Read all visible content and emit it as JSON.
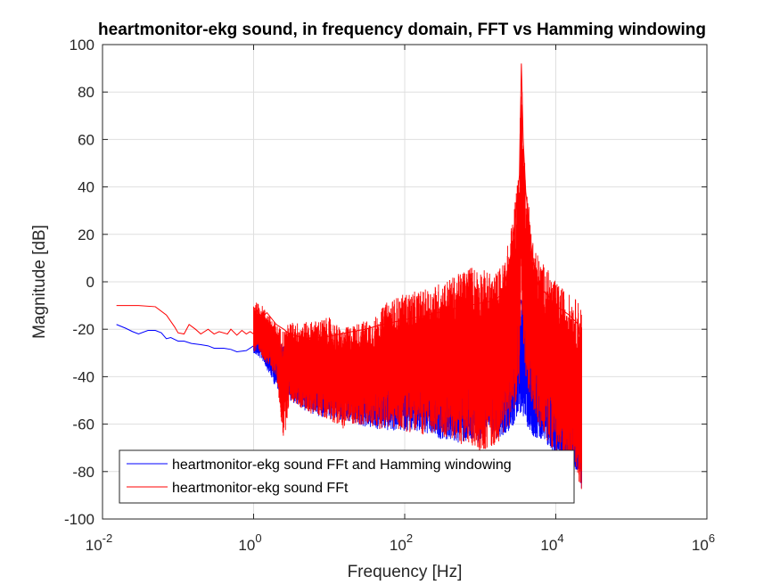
{
  "chart_data": {
    "type": "line",
    "title": "heartmonitor-ekg sound, in frequency domain, FFT vs Hamming windowing",
    "xlabel": "Frequency [Hz]",
    "ylabel": "Magnitude [dB]",
    "xscale": "log",
    "xlim": [
      0.01,
      1000000
    ],
    "ylim": [
      -100,
      100
    ],
    "grid": true,
    "legend_position": "bottom-left",
    "x_ticks": [
      {
        "value": 0.01,
        "base": "10",
        "exp": "-2"
      },
      {
        "value": 1,
        "base": "10",
        "exp": "0"
      },
      {
        "value": 100,
        "base": "10",
        "exp": "2"
      },
      {
        "value": 10000,
        "base": "10",
        "exp": "4"
      },
      {
        "value": 1000000,
        "base": "10",
        "exp": "6"
      }
    ],
    "y_ticks": [
      {
        "value": 100,
        "label": "100"
      },
      {
        "value": 80,
        "label": "80"
      },
      {
        "value": 60,
        "label": "60"
      },
      {
        "value": 40,
        "label": "40"
      },
      {
        "value": 20,
        "label": "20"
      },
      {
        "value": 0,
        "label": "0"
      },
      {
        "value": -20,
        "label": "-20"
      },
      {
        "value": -40,
        "label": "-40"
      },
      {
        "value": -60,
        "label": "-60"
      },
      {
        "value": -80,
        "label": "-80"
      },
      {
        "value": -100,
        "label": "-100"
      }
    ],
    "series": [
      {
        "name": "heartmonitor-ekg sound FFt and Hamming windowing",
        "color": "#0000ff",
        "points": [
          [
            0.0153,
            -18
          ],
          [
            0.02,
            -19.5
          ],
          [
            0.025,
            -21
          ],
          [
            0.03,
            -22
          ],
          [
            0.04,
            -20.5
          ],
          [
            0.05,
            -20.5
          ],
          [
            0.06,
            -21.5
          ],
          [
            0.07,
            -24
          ],
          [
            0.08,
            -23.5
          ],
          [
            0.1,
            -25
          ],
          [
            0.12,
            -25
          ],
          [
            0.15,
            -26
          ],
          [
            0.2,
            -26.5
          ],
          [
            0.25,
            -27
          ],
          [
            0.3,
            -28
          ],
          [
            0.4,
            -28
          ],
          [
            0.5,
            -28.5
          ],
          [
            0.6,
            -29.5
          ],
          [
            0.8,
            -29
          ],
          [
            1.0,
            -27
          ],
          [
            1.2,
            -20
          ],
          [
            1.5,
            -22
          ],
          [
            2.0,
            -28
          ],
          [
            2.5,
            -40
          ],
          [
            3.0,
            -33
          ],
          [
            4.0,
            -38
          ],
          [
            5.0,
            -37
          ],
          [
            7.0,
            -42
          ],
          [
            10,
            -43
          ],
          [
            15,
            -46
          ],
          [
            20,
            -47
          ],
          [
            30,
            -48
          ],
          [
            50,
            -50
          ],
          [
            70,
            -50
          ],
          [
            100,
            -50
          ],
          [
            150,
            -51
          ],
          [
            200,
            -52
          ],
          [
            300,
            -53
          ],
          [
            500,
            -52
          ],
          [
            700,
            -53
          ],
          [
            1000,
            -54
          ],
          [
            1500,
            -53
          ],
          [
            2000,
            -50
          ],
          [
            2500,
            -42
          ],
          [
            3000,
            -20
          ],
          [
            3500,
            -8
          ],
          [
            4000,
            -12
          ],
          [
            5000,
            -40
          ],
          [
            7000,
            -48
          ],
          [
            10000,
            -55
          ],
          [
            15000,
            -60
          ],
          [
            20000,
            -70
          ],
          [
            22000,
            -80
          ]
        ],
        "envelope": [
          [
            1.0,
            -26,
            -30
          ],
          [
            1.3,
            -20,
            -33
          ],
          [
            2.0,
            -25,
            -45
          ],
          [
            3.0,
            -27,
            -50
          ],
          [
            5.0,
            -28,
            -55
          ],
          [
            10,
            -30,
            -58
          ],
          [
            20,
            -29,
            -60
          ],
          [
            50,
            -28,
            -63
          ],
          [
            100,
            -27,
            -63
          ],
          [
            200,
            -26,
            -65
          ],
          [
            500,
            -24,
            -68
          ],
          [
            1000,
            -22,
            -68
          ],
          [
            2000,
            -18,
            -65
          ],
          [
            3000,
            -10,
            -60
          ],
          [
            3500,
            -6,
            -55
          ],
          [
            4000,
            -10,
            -60
          ],
          [
            5000,
            -25,
            -65
          ],
          [
            8000,
            -40,
            -70
          ],
          [
            12000,
            -48,
            -75
          ],
          [
            20000,
            -55,
            -80
          ],
          [
            22000,
            -70,
            -88
          ]
        ]
      },
      {
        "name": "heartmonitor-ekg sound FFt",
        "color": "#ff0000",
        "points": [
          [
            0.0153,
            -10
          ],
          [
            0.03,
            -10
          ],
          [
            0.05,
            -10.5
          ],
          [
            0.07,
            -14
          ],
          [
            0.09,
            -19
          ],
          [
            0.1,
            -21.5
          ],
          [
            0.12,
            -22
          ],
          [
            0.14,
            -18
          ],
          [
            0.17,
            -20
          ],
          [
            0.2,
            -22
          ],
          [
            0.25,
            -20
          ],
          [
            0.3,
            -22
          ],
          [
            0.35,
            -21
          ],
          [
            0.45,
            -22
          ],
          [
            0.5,
            -20
          ],
          [
            0.6,
            -22.5
          ],
          [
            0.7,
            -20.5
          ],
          [
            0.8,
            -22
          ],
          [
            0.9,
            -21
          ],
          [
            1.0,
            -22
          ],
          [
            1.1,
            -12
          ],
          [
            1.3,
            -15
          ],
          [
            1.5,
            -13
          ],
          [
            2.0,
            -18
          ],
          [
            2.5,
            -20
          ],
          [
            3,
            -22
          ],
          [
            5,
            -24
          ],
          [
            10,
            -23
          ],
          [
            20,
            -21
          ],
          [
            30,
            -20
          ],
          [
            50,
            -18
          ],
          [
            100,
            -16
          ],
          [
            200,
            -14
          ],
          [
            500,
            -11
          ],
          [
            1000,
            -9
          ],
          [
            1500,
            -8
          ],
          [
            2000,
            -5
          ],
          [
            2500,
            10
          ],
          [
            3000,
            30
          ],
          [
            3300,
            45
          ],
          [
            3500,
            92
          ],
          [
            3700,
            60
          ],
          [
            4000,
            38
          ],
          [
            5000,
            8
          ],
          [
            6000,
            -2
          ],
          [
            8000,
            -6
          ],
          [
            10000,
            -10
          ],
          [
            15000,
            -14
          ],
          [
            20000,
            -18
          ],
          [
            22000,
            -30
          ]
        ],
        "envelope": [
          [
            1.0,
            -8,
            -30
          ],
          [
            1.3,
            -10,
            -32
          ],
          [
            2.0,
            -18,
            -40
          ],
          [
            2.5,
            -20,
            -68
          ],
          [
            3.0,
            -17,
            -50
          ],
          [
            5.0,
            -17,
            -55
          ],
          [
            10,
            -15,
            -58
          ],
          [
            15,
            -20,
            -62
          ],
          [
            20,
            -18,
            -60
          ],
          [
            40,
            -15,
            -62
          ],
          [
            60,
            -8,
            -62
          ],
          [
            100,
            -5,
            -63
          ],
          [
            200,
            -3,
            -65
          ],
          [
            300,
            0,
            -65
          ],
          [
            500,
            3,
            -68
          ],
          [
            700,
            7,
            -70
          ],
          [
            1000,
            6,
            -72
          ],
          [
            1500,
            3,
            -70
          ],
          [
            2000,
            8,
            -65
          ],
          [
            2500,
            20,
            -60
          ],
          [
            3000,
            40,
            -50
          ],
          [
            3300,
            55,
            -45
          ],
          [
            3500,
            92,
            -20
          ],
          [
            3700,
            65,
            -30
          ],
          [
            4000,
            45,
            -40
          ],
          [
            5000,
            18,
            -55
          ],
          [
            6000,
            10,
            -62
          ],
          [
            8000,
            5,
            -68
          ],
          [
            10000,
            0,
            -72
          ],
          [
            15000,
            -5,
            -80
          ],
          [
            20000,
            -8,
            -85
          ],
          [
            22000,
            -10,
            -88
          ]
        ]
      }
    ]
  }
}
